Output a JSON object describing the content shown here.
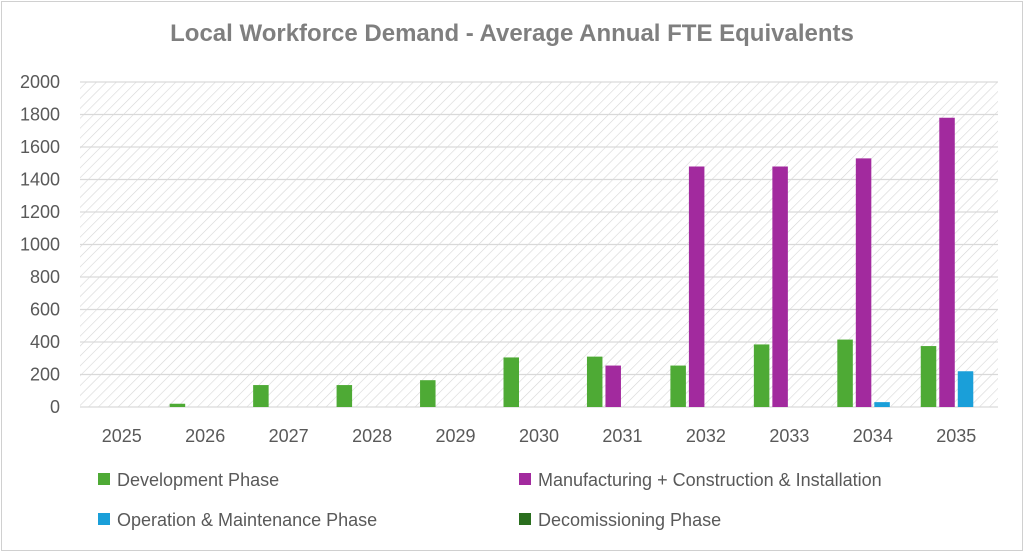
{
  "chart_data": {
    "type": "bar",
    "title": "Local Workforce Demand - Average Annual FTE Equivalents",
    "xlabel": "",
    "ylabel": "",
    "ylim": [
      0,
      2000
    ],
    "yticks": [
      0,
      200,
      400,
      600,
      800,
      1000,
      1200,
      1400,
      1600,
      1800,
      2000
    ],
    "categories": [
      "2025",
      "2026",
      "2027",
      "2028",
      "2029",
      "2030",
      "2031",
      "2032",
      "2033",
      "2034",
      "2035"
    ],
    "grid": true,
    "legend_position": "bottom",
    "series": [
      {
        "name": "Development Phase",
        "color": "#4eaa35",
        "values": [
          0,
          20,
          135,
          135,
          165,
          305,
          310,
          255,
          385,
          415,
          375
        ]
      },
      {
        "name": "Manufacturing + Construction & Installation",
        "color": "#a22a9e",
        "values": [
          0,
          0,
          0,
          0,
          0,
          0,
          255,
          1480,
          1480,
          1530,
          1780
        ]
      },
      {
        "name": "Operation  & Maintenance Phase",
        "color": "#1a9fd9",
        "values": [
          0,
          0,
          0,
          0,
          0,
          0,
          0,
          0,
          0,
          30,
          220
        ]
      },
      {
        "name": "Decomissioning Phase",
        "color": "#2a6e1e",
        "values": [
          0,
          0,
          0,
          0,
          0,
          0,
          0,
          0,
          0,
          0,
          0
        ]
      }
    ]
  }
}
